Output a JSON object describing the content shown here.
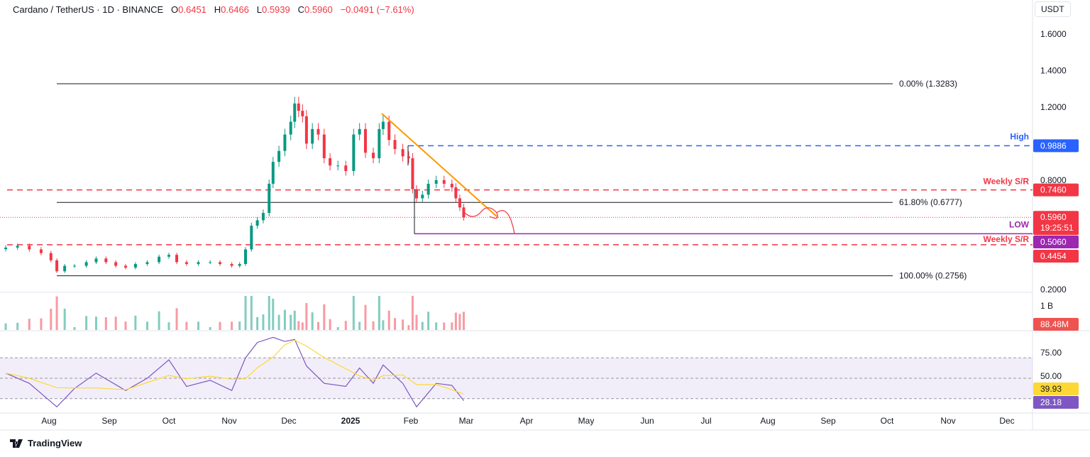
{
  "header": {
    "symbol": "Cardano / TetherUS · 1D · BINANCE",
    "o_label": "O",
    "o": "0.6451",
    "h_label": "H",
    "h": "0.6466",
    "l_label": "L",
    "l": "0.5939",
    "c_label": "C",
    "c": "0.5960",
    "change": "−0.0491 (−7.61%)"
  },
  "currency": "USDT",
  "footer": {
    "brand": "TradingView"
  },
  "colors": {
    "up": "#089981",
    "down": "#f23645",
    "trend": "#ff9800",
    "high": "#2962ff",
    "low": "#9c27b0",
    "rsi": "#7e57c2",
    "rsi_ma": "#fdd835"
  },
  "chart_data": [
    {
      "type": "candlestick",
      "ylim": [
        0.2,
        1.6
      ],
      "y_ticks": [
        "1.6000",
        "1.4000",
        "1.2000",
        "0.8000",
        "0.2000"
      ],
      "x_ticks": [
        "Aug",
        "Sep",
        "Oct",
        "Nov",
        "Dec",
        "2025",
        "Feb",
        "Mar",
        "Apr",
        "May",
        "Jun",
        "Jul",
        "Aug",
        "Sep",
        "Oct",
        "Nov",
        "Dec"
      ],
      "closes": [
        [
          "2024-07-10",
          0.43
        ],
        [
          "2024-07-16",
          0.44
        ],
        [
          "2024-07-22",
          0.42
        ],
        [
          "2024-07-28",
          0.4
        ],
        [
          "2024-08-02",
          0.36
        ],
        [
          "2024-08-05",
          0.3
        ],
        [
          "2024-08-09",
          0.33
        ],
        [
          "2024-08-14",
          0.33
        ],
        [
          "2024-08-20",
          0.35
        ],
        [
          "2024-08-25",
          0.37
        ],
        [
          "2024-08-30",
          0.35
        ],
        [
          "2024-09-04",
          0.33
        ],
        [
          "2024-09-09",
          0.32
        ],
        [
          "2024-09-14",
          0.34
        ],
        [
          "2024-09-20",
          0.35
        ],
        [
          "2024-09-26",
          0.38
        ],
        [
          "2024-10-01",
          0.39
        ],
        [
          "2024-10-05",
          0.35
        ],
        [
          "2024-10-10",
          0.34
        ],
        [
          "2024-10-16",
          0.35
        ],
        [
          "2024-10-22",
          0.35
        ],
        [
          "2024-10-27",
          0.34
        ],
        [
          "2024-11-02",
          0.33
        ],
        [
          "2024-11-06",
          0.34
        ],
        [
          "2024-11-09",
          0.42
        ],
        [
          "2024-11-12",
          0.55
        ],
        [
          "2024-11-15",
          0.58
        ],
        [
          "2024-11-18",
          0.62
        ],
        [
          "2024-11-21",
          0.78
        ],
        [
          "2024-11-23",
          0.9
        ],
        [
          "2024-11-26",
          0.96
        ],
        [
          "2024-11-29",
          1.05
        ],
        [
          "2024-12-02",
          1.12
        ],
        [
          "2024-12-04",
          1.22
        ],
        [
          "2024-12-06",
          1.18
        ],
        [
          "2024-12-08",
          1.15
        ],
        [
          "2024-12-10",
          1.0
        ],
        [
          "2024-12-13",
          1.08
        ],
        [
          "2024-12-16",
          1.05
        ],
        [
          "2024-12-19",
          0.92
        ],
        [
          "2024-12-22",
          0.88
        ],
        [
          "2024-12-26",
          0.88
        ],
        [
          "2024-12-30",
          0.85
        ],
        [
          "2025-01-03",
          1.05
        ],
        [
          "2025-01-06",
          1.08
        ],
        [
          "2025-01-09",
          0.95
        ],
        [
          "2025-01-13",
          0.92
        ],
        [
          "2025-01-16",
          1.08
        ],
        [
          "2025-01-18",
          1.12
        ],
        [
          "2025-01-21",
          1.02
        ],
        [
          "2025-01-24",
          0.97
        ],
        [
          "2025-01-28",
          0.93
        ],
        [
          "2025-01-31",
          0.92
        ],
        [
          "2025-02-02",
          0.75
        ],
        [
          "2025-02-04",
          0.7
        ],
        [
          "2025-02-07",
          0.72
        ],
        [
          "2025-02-10",
          0.78
        ],
        [
          "2025-02-14",
          0.8
        ],
        [
          "2025-02-18",
          0.78
        ],
        [
          "2025-02-22",
          0.76
        ],
        [
          "2025-02-24",
          0.7
        ],
        [
          "2025-02-26",
          0.65
        ],
        [
          "2025-02-28",
          0.596
        ]
      ],
      "annotations": {
        "fib_0": "0.00% (1.3283)",
        "fib_618": "61.80% (0.6777)",
        "fib_100": "100.00% (0.2756)",
        "high_label": "High",
        "weekly_sr_label": "Weekly S/R",
        "low_label": "LOW"
      },
      "price_tags": {
        "high": "0.9886",
        "weekly_sr_upper": "0.7460",
        "last": "0.5960",
        "countdown": "19:25:51",
        "low": "0.5060",
        "weekly_sr_lower": "0.4454"
      }
    },
    {
      "type": "bar",
      "name": "Volume",
      "y_tick": "1 B",
      "last_tag": "88.48M"
    },
    {
      "type": "line",
      "name": "RSI",
      "y_ticks": [
        "75.00",
        "50.00"
      ],
      "bands": [
        70,
        30
      ],
      "rsi_tag": "28.18",
      "ma_tag": "39.93",
      "rsi": [
        [
          "2024-07-10",
          55
        ],
        [
          "2024-07-22",
          45
        ],
        [
          "2024-08-05",
          22
        ],
        [
          "2024-08-14",
          40
        ],
        [
          "2024-08-25",
          55
        ],
        [
          "2024-09-09",
          38
        ],
        [
          "2024-09-20",
          50
        ],
        [
          "2024-10-01",
          68
        ],
        [
          "2024-10-10",
          42
        ],
        [
          "2024-10-22",
          48
        ],
        [
          "2024-11-02",
          38
        ],
        [
          "2024-11-09",
          70
        ],
        [
          "2024-11-15",
          85
        ],
        [
          "2024-11-23",
          90
        ],
        [
          "2024-11-29",
          86
        ],
        [
          "2024-12-04",
          88
        ],
        [
          "2024-12-10",
          62
        ],
        [
          "2024-12-19",
          45
        ],
        [
          "2024-12-30",
          42
        ],
        [
          "2025-01-06",
          60
        ],
        [
          "2025-01-13",
          45
        ],
        [
          "2025-01-18",
          63
        ],
        [
          "2025-01-28",
          45
        ],
        [
          "2025-02-04",
          22
        ],
        [
          "2025-02-14",
          45
        ],
        [
          "2025-02-22",
          43
        ],
        [
          "2025-02-28",
          28
        ]
      ]
    }
  ]
}
